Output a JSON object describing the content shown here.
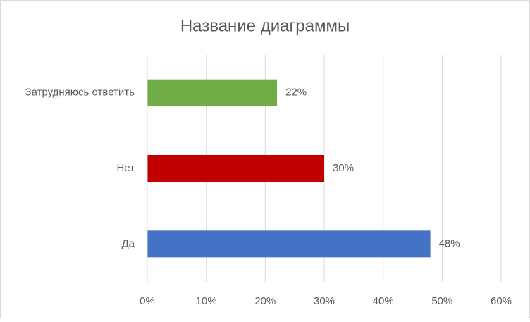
{
  "chart_data": {
    "type": "hbar",
    "title": "Название диаграммы",
    "categories": [
      "Да",
      "Нет",
      "Затрудняюсь ответить"
    ],
    "values": [
      48,
      30,
      22
    ],
    "value_labels": [
      "48%",
      "30%",
      "22%"
    ],
    "colors": [
      "#4472c4",
      "#c00000",
      "#70ad47"
    ],
    "xlim": [
      0,
      60
    ],
    "xticks": [
      {
        "value": 0,
        "label": "0%"
      },
      {
        "value": 10,
        "label": "10%"
      },
      {
        "value": 20,
        "label": "20%"
      },
      {
        "value": 30,
        "label": "30%"
      },
      {
        "value": 40,
        "label": "40%"
      },
      {
        "value": 50,
        "label": "50%"
      },
      {
        "value": 60,
        "label": "60%"
      }
    ],
    "grid": true
  }
}
